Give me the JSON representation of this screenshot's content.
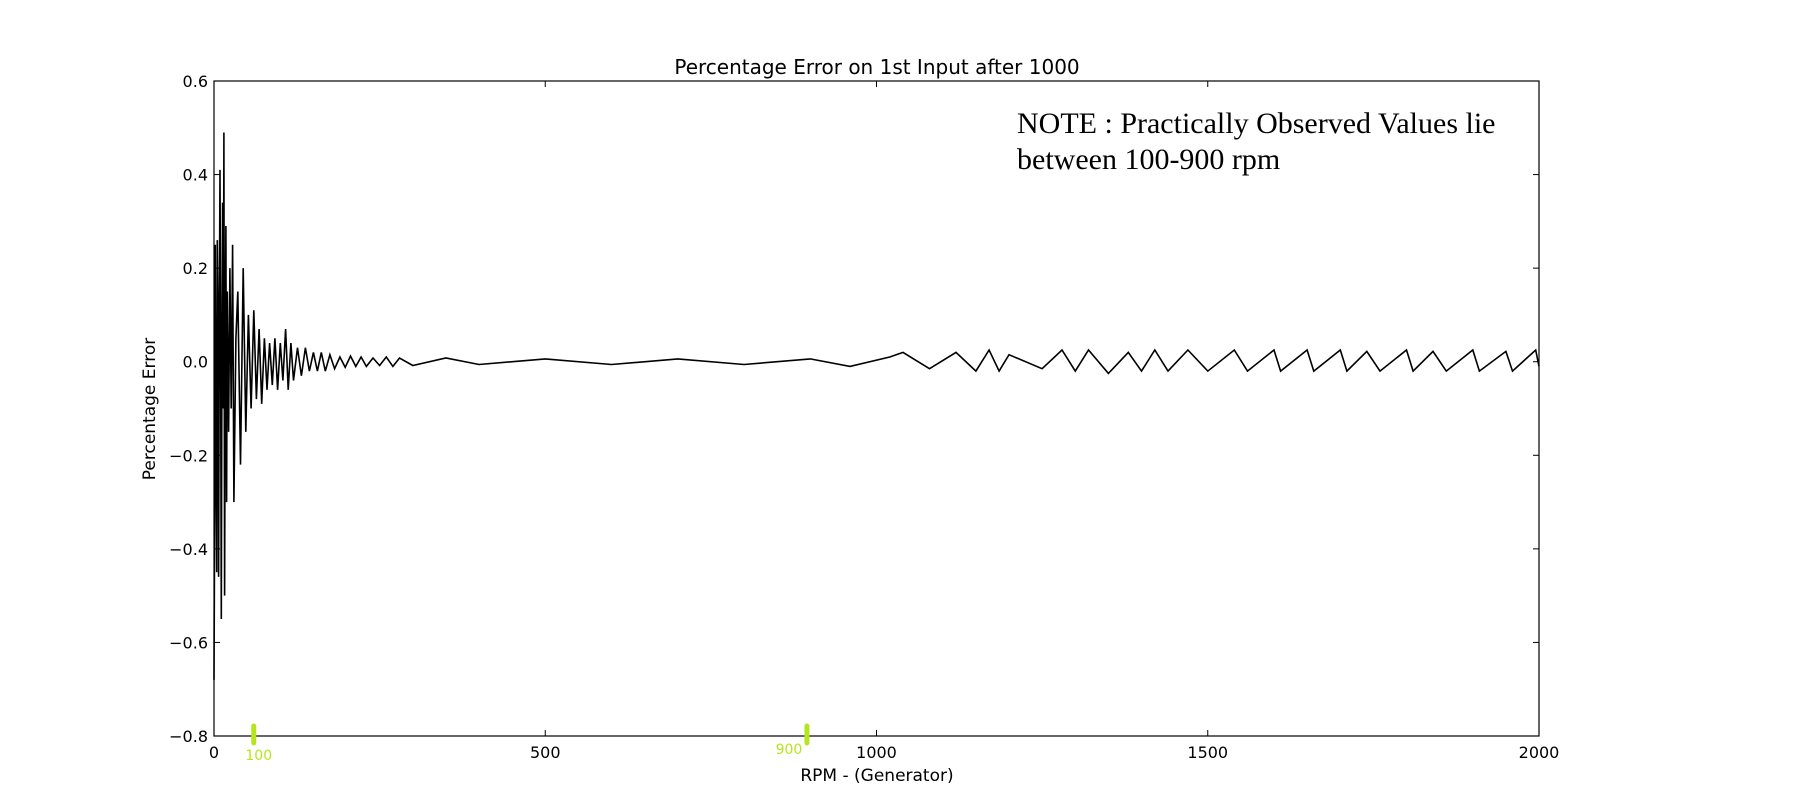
{
  "chart_data": {
    "type": "line",
    "title": "Percentage Error on 1st Input after 1000",
    "xlabel": "RPM - (Generator)",
    "ylabel": "Percentage Error",
    "xlim": [
      0,
      2000
    ],
    "ylim": [
      -0.8,
      0.6
    ],
    "xticks": [
      0,
      500,
      1000,
      1500,
      2000
    ],
    "xtick_labels": [
      "0",
      "500",
      "1000",
      "1500",
      "2000"
    ],
    "yticks": [
      0.6,
      0.4,
      0.2,
      0.0,
      -0.2,
      -0.4,
      -0.6,
      -0.8
    ],
    "ytick_labels": [
      "0.6",
      "0.4",
      "0.2",
      "0.0",
      "−0.2",
      "−0.4",
      "−0.6",
      "−0.8"
    ],
    "grid": false,
    "legend": "none",
    "line_color": "#000000",
    "annotation": {
      "lines": [
        "NOTE : Practically Observed Values lie",
        "between 100-900 rpm"
      ],
      "position": "top-right"
    },
    "markers": {
      "color": "#b5e61d",
      "items": [
        {
          "x": 60,
          "label": "100"
        },
        {
          "x": 895,
          "label": "900"
        }
      ]
    },
    "series": [
      {
        "x": [
          0,
          1,
          2,
          3,
          4,
          5,
          6,
          7,
          8,
          9,
          10,
          11,
          12,
          13,
          14,
          15,
          16,
          17,
          18,
          19,
          20,
          22,
          24,
          26,
          28,
          30,
          33,
          36,
          40,
          44,
          48,
          52,
          56,
          60,
          64,
          68,
          72,
          76,
          80,
          84,
          88,
          92,
          96,
          100,
          104,
          108,
          112,
          116,
          120,
          126,
          132,
          138,
          144,
          150,
          156,
          162,
          168,
          175,
          182,
          190,
          198,
          206,
          214,
          222,
          230,
          240,
          250,
          260,
          270,
          280,
          300,
          350,
          400,
          500,
          600,
          700,
          800,
          900,
          960,
          1020,
          1040,
          1080,
          1120,
          1150,
          1170,
          1185,
          1200,
          1250,
          1280,
          1300,
          1320,
          1350,
          1380,
          1400,
          1420,
          1440,
          1470,
          1500,
          1540,
          1560,
          1600,
          1610,
          1650,
          1660,
          1700,
          1710,
          1740,
          1760,
          1800,
          1810,
          1840,
          1860,
          1900,
          1910,
          1950,
          1960,
          1995,
          2000
        ],
        "y": [
          -0.68,
          -0.3,
          0.25,
          -0.2,
          -0.45,
          0.26,
          0.1,
          -0.46,
          0.1,
          0.41,
          0.05,
          -0.55,
          0.0,
          0.34,
          -0.1,
          0.49,
          -0.5,
          0.05,
          0.29,
          -0.3,
          0.15,
          -0.15,
          0.2,
          -0.1,
          0.25,
          -0.3,
          0.05,
          0.15,
          -0.22,
          0.2,
          -0.15,
          0.1,
          -0.1,
          0.11,
          -0.08,
          0.07,
          -0.09,
          0.05,
          -0.06,
          0.04,
          -0.05,
          0.05,
          -0.06,
          0.04,
          -0.04,
          0.07,
          -0.06,
          0.04,
          -0.04,
          0.03,
          -0.03,
          0.03,
          -0.02,
          0.02,
          -0.02,
          0.02,
          -0.02,
          0.015,
          -0.015,
          0.01,
          -0.012,
          0.012,
          -0.01,
          0.01,
          -0.01,
          0.008,
          -0.008,
          0.01,
          -0.01,
          0.008,
          -0.008,
          0.008,
          -0.006,
          0.006,
          -0.006,
          0.006,
          -0.006,
          0.006,
          -0.01,
          0.01,
          0.02,
          -0.015,
          0.02,
          -0.02,
          0.025,
          -0.02,
          0.015,
          -0.015,
          0.025,
          -0.02,
          0.025,
          -0.025,
          0.02,
          -0.02,
          0.025,
          -0.02,
          0.025,
          -0.02,
          0.025,
          -0.02,
          0.025,
          -0.02,
          0.025,
          -0.02,
          0.025,
          -0.02,
          0.022,
          -0.02,
          0.025,
          -0.02,
          0.022,
          -0.02,
          0.025,
          -0.02,
          0.022,
          -0.02,
          0.025,
          -0.01
        ]
      }
    ]
  }
}
